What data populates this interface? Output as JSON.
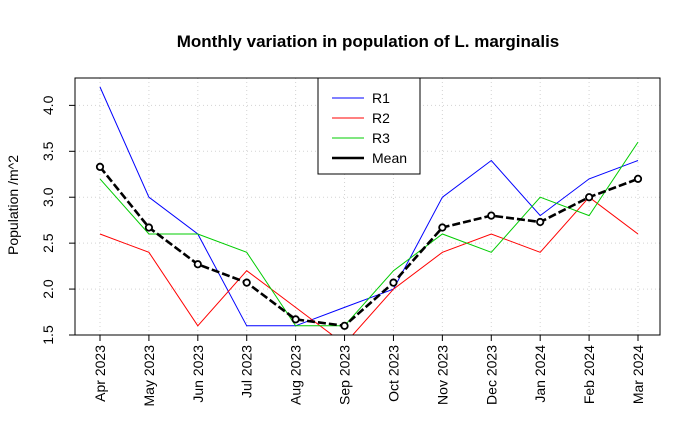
{
  "chart_data": {
    "type": "line",
    "title": "Monthly variation in population of L. marginalis",
    "xlabel": "",
    "ylabel": "Population /m^2",
    "categories": [
      "Apr 2023",
      "May 2023",
      "Jun 2023",
      "Jul 2023",
      "Aug 2023",
      "Sep 2023",
      "Oct 2023",
      "Nov 2023",
      "Dec 2023",
      "Jan 2024",
      "Feb 2024",
      "Mar 2024"
    ],
    "ylim": [
      1.5,
      4.2
    ],
    "yticks": [
      "1.5",
      "2.0",
      "2.5",
      "3.0",
      "3.5",
      "4.0"
    ],
    "grid": true,
    "legend_position": "top-center",
    "series": [
      {
        "name": "R1",
        "color": "#0000ff",
        "values": [
          4.2,
          3.0,
          2.6,
          1.6,
          1.6,
          1.8,
          2.0,
          3.0,
          3.4,
          2.8,
          3.2,
          3.4
        ]
      },
      {
        "name": "R2",
        "color": "#ff0000",
        "values": [
          2.6,
          2.4,
          1.6,
          2.2,
          1.8,
          1.4,
          2.0,
          2.4,
          2.6,
          2.4,
          3.0,
          2.6
        ]
      },
      {
        "name": "R3",
        "color": "#00cc00",
        "values": [
          3.2,
          2.6,
          2.6,
          2.4,
          1.6,
          1.6,
          2.2,
          2.6,
          2.4,
          3.0,
          2.8,
          3.6
        ]
      },
      {
        "name": "Mean",
        "color": "#000000",
        "values": [
          3.33,
          2.67,
          2.27,
          2.07,
          1.67,
          1.6,
          2.07,
          2.67,
          2.8,
          2.73,
          3.0,
          3.2
        ]
      }
    ]
  }
}
